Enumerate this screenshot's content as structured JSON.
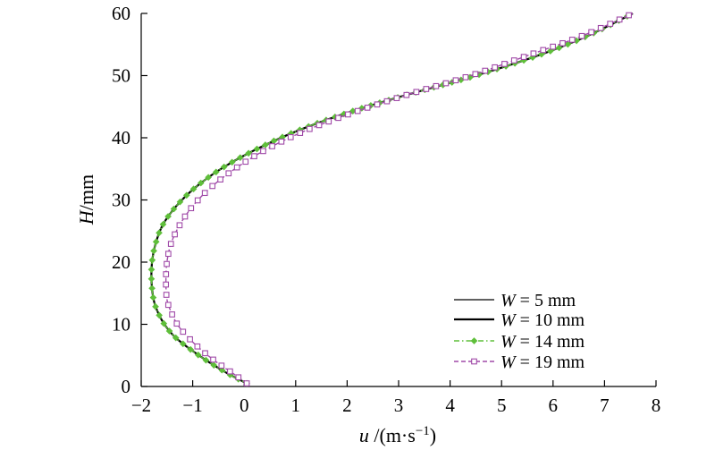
{
  "chart_data": {
    "type": "line",
    "title": "",
    "xlabel": {
      "var": "u",
      "unit": " /(m·s",
      "exp": "−1",
      "close": ")"
    },
    "ylabel": {
      "var": "H",
      "unit": "/mm"
    },
    "xlim": [
      -2,
      8
    ],
    "ylim": [
      0,
      60
    ],
    "xticks": [
      -2,
      -1,
      0,
      1,
      2,
      3,
      4,
      5,
      6,
      7,
      8
    ],
    "xtick_labels": [
      "−2",
      "−1",
      "0",
      "1",
      "2",
      "3",
      "4",
      "5",
      "6",
      "7",
      "8"
    ],
    "yticks": [
      0,
      10,
      20,
      30,
      40,
      50,
      60
    ],
    "ytick_labels": [
      "0",
      "10",
      "20",
      "30",
      "40",
      "50",
      "60"
    ],
    "grid": false,
    "legend_position": "lower-right",
    "series": [
      {
        "name": "W = 5 mm",
        "name_var": "W",
        "name_rest": " = 5 mm",
        "color": "#000000",
        "style": "solid",
        "width": 1.2,
        "marker": "none",
        "x": [
          0.05,
          -0.3,
          -0.7,
          -1.05,
          -1.35,
          -1.55,
          -1.68,
          -1.76,
          -1.8,
          -1.79,
          -1.72,
          -1.58,
          -1.32,
          -0.95,
          -0.45,
          0.2,
          1.0,
          2.0,
          3.2,
          4.5,
          5.8,
          6.7,
          7.55
        ],
        "y": [
          0.5,
          2,
          4,
          6,
          8,
          10,
          12,
          14,
          17,
          20,
          23,
          26,
          29,
          32,
          35,
          38,
          41,
          44,
          47,
          50,
          53.5,
          56.5,
          60
        ]
      },
      {
        "name": "W = 10 mm",
        "name_var": "W",
        "name_rest": " = 10 mm",
        "color": "#000000",
        "style": "solid",
        "width": 2.2,
        "marker": "none",
        "x": [
          0.05,
          -0.3,
          -0.7,
          -1.05,
          -1.35,
          -1.55,
          -1.68,
          -1.76,
          -1.8,
          -1.79,
          -1.72,
          -1.58,
          -1.32,
          -0.95,
          -0.45,
          0.2,
          1.0,
          2.0,
          3.2,
          4.5,
          5.8,
          6.7,
          7.55
        ],
        "y": [
          0.5,
          2,
          4,
          6,
          8,
          10,
          12,
          14,
          17,
          20,
          23,
          26,
          29,
          32,
          35,
          38,
          41,
          44,
          47,
          50,
          53.5,
          56.5,
          60
        ]
      },
      {
        "name": "W = 14 mm",
        "name_var": "W",
        "name_rest": " = 14 mm",
        "color": "#5fbf3a",
        "style": "dashdot",
        "width": 1.4,
        "marker": "diamond",
        "x": [
          0.05,
          -0.3,
          -0.7,
          -1.05,
          -1.35,
          -1.55,
          -1.68,
          -1.76,
          -1.8,
          -1.79,
          -1.72,
          -1.58,
          -1.32,
          -0.95,
          -0.45,
          0.2,
          1.0,
          2.0,
          3.2,
          4.5,
          5.8,
          6.7,
          7.55
        ],
        "y": [
          0.5,
          2,
          4,
          6,
          8,
          10,
          12,
          14,
          17,
          20,
          23,
          26,
          29,
          32,
          35,
          38,
          41,
          44,
          47,
          50,
          53.5,
          56.5,
          60
        ]
      },
      {
        "name": "W = 19 mm",
        "name_var": "W",
        "name_rest": " = 19 mm",
        "color": "#a04aa8",
        "style": "dashed",
        "width": 1.4,
        "marker": "square",
        "x": [
          0.05,
          -0.2,
          -0.55,
          -0.85,
          -1.1,
          -1.3,
          -1.42,
          -1.5,
          -1.52,
          -1.5,
          -1.42,
          -1.25,
          -1.0,
          -0.65,
          -0.18,
          0.4,
          1.15,
          2.1,
          3.2,
          4.4,
          5.6,
          6.6,
          7.55
        ],
        "y": [
          0.5,
          2,
          4,
          6,
          8,
          10,
          12,
          14,
          17,
          20,
          23,
          26,
          29,
          32,
          35,
          38,
          41,
          44,
          47,
          50,
          53.5,
          56.5,
          60
        ]
      }
    ]
  }
}
